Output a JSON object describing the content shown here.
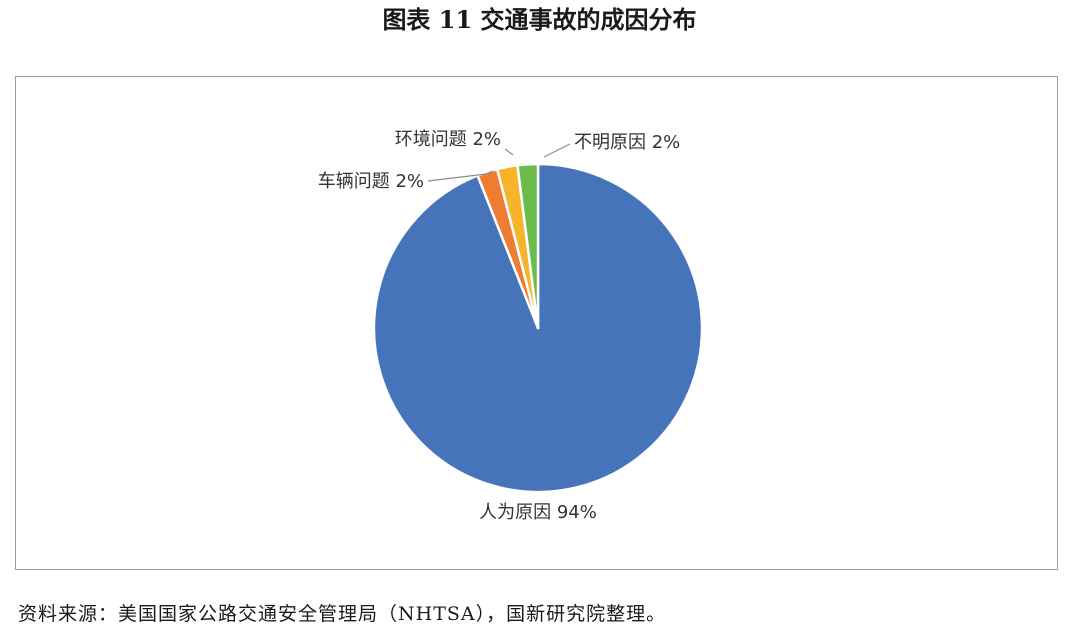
{
  "title": "图表 11  交通事故的成因分布",
  "source": "资料来源：美国国家公路交通安全管理局（NHTSA），国新研究院整理。",
  "chart_data": {
    "type": "pie",
    "title": "图表 11  交通事故的成因分布",
    "slices": [
      {
        "label": "人为原因",
        "value": 94,
        "display": "人为原因 94%",
        "color": "#4674BA"
      },
      {
        "label": "车辆问题",
        "value": 2,
        "display": "车辆问题 2%",
        "color": "#EE7C31"
      },
      {
        "label": "环境问题",
        "value": 2,
        "display": "环境问题 2%",
        "color": "#F6B42A"
      },
      {
        "label": "不明原因",
        "value": 2,
        "display": "不明原因 2%",
        "color": "#6CBC4C"
      }
    ],
    "unit": "%",
    "legend": "none"
  }
}
